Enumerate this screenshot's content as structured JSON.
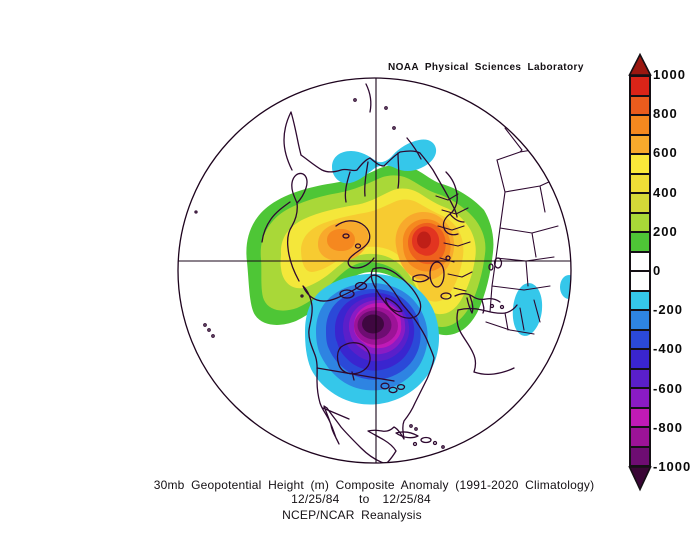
{
  "title": {
    "credit_line": "NOAA Physical Sciences Laboratory"
  },
  "captions": {
    "line1": "30mb Geopotential Height (m) Composite Anomaly (1991-2020 Climatology)",
    "line2": "12/25/84   to  12/25/84",
    "line3": "NCEP/NCAR Reanalysis"
  },
  "colorbar": {
    "ticks": [
      "1000",
      "800",
      "600",
      "400",
      "200",
      "0",
      "-200",
      "-400",
      "-600",
      "-800",
      "-1000"
    ],
    "colors": [
      "#da2418",
      "#ea5c1d",
      "#f5881f",
      "#f8a92c",
      "#fbe83a",
      "#efdd37",
      "#d4d838",
      "#a9d838",
      "#4ec636",
      "#ffffff",
      "#ffffff",
      "#35c7ea",
      "#2e84e2",
      "#2b49d8",
      "#3a25cf",
      "#5a1fca",
      "#8a1bc4",
      "#c01ab6",
      "#9c1397",
      "#6e0d72"
    ],
    "arrow_top": "#9b1710",
    "arrow_bottom": "#3a0636"
  },
  "palette": {
    "p100": "#4ec636",
    "p200": "#a9d838",
    "p300": "#f4e73a",
    "p400": "#f7cb31",
    "p500": "#f8a92c",
    "p600": "#f5881f",
    "p700": "#ee611d",
    "p800": "#e23420",
    "p900": "#bf1f17",
    "n200": "#35c7ea",
    "n300": "#2e84e2",
    "n400": "#2b49d8",
    "n500": "#3a25cf",
    "n600": "#5a1fca",
    "n700": "#8a1bc4",
    "n800": "#c01ab6",
    "n900": "#9c1397",
    "n1000": "#6e0d72",
    "core": "#3f0740",
    "coast": "#2e0930",
    "grid": "#1a051a"
  },
  "chart_data": {
    "type": "heatmap",
    "title": "30mb Geopotential Height (m) Composite Anomaly (1991-2020 Climatology)",
    "date_range": "12/25/84 to 12/25/84",
    "source": "NCEP/NCAR Reanalysis",
    "credit": "NOAA Physical Sciences Laboratory",
    "projection": "Northern Hemisphere polar stereographic",
    "units": "m",
    "colorbar": {
      "min": -1000,
      "max": 1000,
      "interval": 100,
      "labeled_ticks": [
        1000,
        800,
        600,
        400,
        200,
        0,
        -200,
        -400,
        -600,
        -800,
        -1000
      ],
      "zero_band_color": "#ffffff",
      "position": "right"
    },
    "features": [
      {
        "name": "positive-anomaly",
        "location": "Eurasia / western Siberia sector",
        "peak_value": "+900 to +1000",
        "extent_levels": "+100 outer contour (green) to +900 core (dark red)"
      },
      {
        "name": "secondary-positive-core",
        "location": "northern Europe sector",
        "peak_value": "+500 to +600"
      },
      {
        "name": "negative-anomaly",
        "location": "Canada / Hudson Bay / Greenland sector",
        "peak_value": "-900 to -1000 or below",
        "extent_levels": "-100 outer contour (cyan) to dark purple core"
      },
      {
        "name": "weak-negative-patch",
        "location": "Arctic coast of Siberia",
        "peak_value": "-200 to -300"
      },
      {
        "name": "weak-negative-patch",
        "location": "West Africa",
        "peak_value": "-200"
      },
      {
        "name": "weak-negative-patch",
        "location": "eastern map edge",
        "peak_value": "-200"
      }
    ]
  }
}
